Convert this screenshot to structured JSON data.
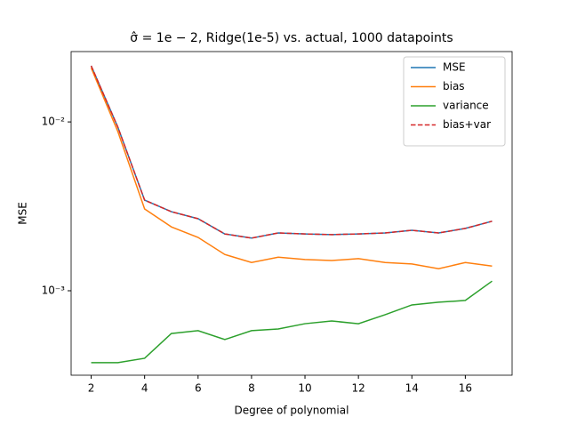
{
  "chart_data": {
    "type": "line",
    "title": "σ̂ = 1e − 2, Ridge(1e-5) vs. actual, 1000 datapoints",
    "x_label": "Degree of polynomial",
    "y_label": "MSE",
    "x": [
      2,
      3,
      4,
      5,
      6,
      7,
      8,
      9,
      10,
      11,
      12,
      13,
      14,
      15,
      16,
      17
    ],
    "series": [
      {
        "name": "MSE",
        "color": "#1f77b4",
        "dash": false,
        "values": [
          0.0215,
          0.0093,
          0.00344,
          0.00294,
          0.00267,
          0.00217,
          0.00205,
          0.0022,
          0.00217,
          0.00215,
          0.00217,
          0.0022,
          0.00228,
          0.0022,
          0.00234,
          0.00258
        ]
      },
      {
        "name": "bias",
        "color": "#ff7f0e",
        "dash": false,
        "values": [
          0.0209,
          0.00875,
          0.00305,
          0.00239,
          0.00207,
          0.00164,
          0.00147,
          0.00158,
          0.00153,
          0.00151,
          0.00155,
          0.00147,
          0.00144,
          0.00135,
          0.00147,
          0.0014
        ]
      },
      {
        "name": "variance",
        "color": "#2ca02c",
        "dash": false,
        "values": [
          0.000375,
          0.000375,
          0.000398,
          0.000558,
          0.00058,
          0.000514,
          0.00058,
          0.000594,
          0.000638,
          0.000662,
          0.000638,
          0.000721,
          0.000824,
          0.000855,
          0.000876,
          0.00114
        ]
      },
      {
        "name": "bias+var",
        "color": "#d62728",
        "dash": true,
        "values": [
          0.0215,
          0.0093,
          0.00344,
          0.00294,
          0.00267,
          0.00217,
          0.00205,
          0.0022,
          0.00217,
          0.00215,
          0.00217,
          0.0022,
          0.00228,
          0.0022,
          0.00234,
          0.00258
        ]
      }
    ],
    "xlim": [
      1.25,
      17.75
    ],
    "xticks": [
      2,
      4,
      6,
      8,
      10,
      12,
      14,
      16
    ],
    "ylim": [
      0.000316,
      0.0261
    ],
    "y_scale": "log",
    "yticks": [
      {
        "value": 0.001,
        "label": "10⁻³"
      },
      {
        "value": 0.01,
        "label": "10⁻²"
      }
    ],
    "legend": "upper right",
    "grid": false
  }
}
